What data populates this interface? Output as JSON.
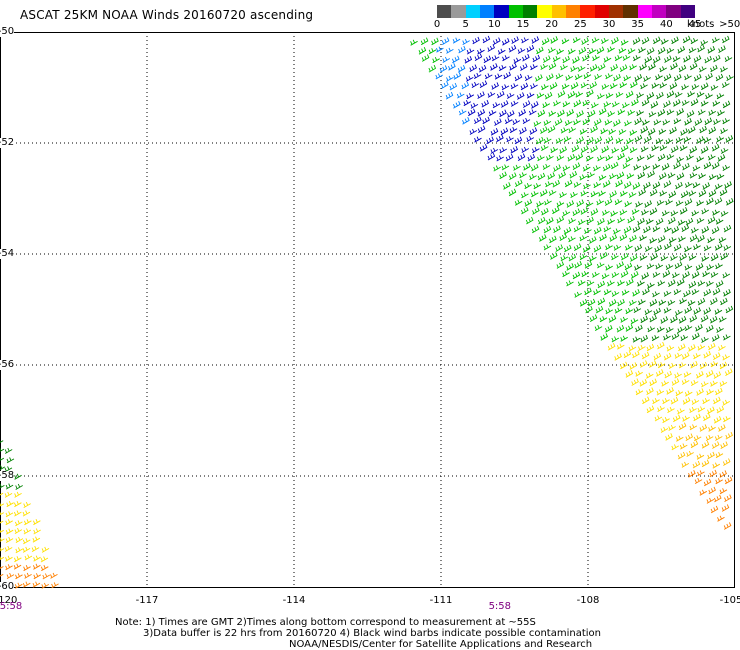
{
  "title": "ASCAT 25KM NOAA Winds 20160720 ascending",
  "legend": {
    "unit": "knots",
    "labels": [
      "0",
      "5",
      "10",
      "15",
      "20",
      "25",
      "30",
      "35",
      "40",
      "45",
      ">50"
    ],
    "colors": [
      "#4d4d4d",
      "#9a9a9a",
      "#00d0ff",
      "#0080ff",
      "#0000c0",
      "#00c000",
      "#008000",
      "#ffff00",
      "#ffc000",
      "#ff8000",
      "#ff2000",
      "#e00000",
      "#a03000",
      "#603000",
      "#ff00ff",
      "#c000c0",
      "#800080",
      "#400080"
    ]
  },
  "map": {
    "lon_range": [
      -120,
      -105
    ],
    "lat_range": [
      -60,
      -50
    ],
    "x_ticks": [
      "-120",
      "-117",
      "-114",
      "-111",
      "-108",
      "-105"
    ],
    "y_ticks": [
      "-50",
      "-52",
      "-54",
      "-56",
      "-58",
      "-60"
    ],
    "grid": true,
    "times": [
      {
        "lon": -120,
        "label": "5:58"
      },
      {
        "lon": -109.8,
        "label": "5:58"
      }
    ]
  },
  "notes": [
    "Note: 1) Times are GMT 2)Times along bottom correspond to measurement at ~55S",
    "3)Data buffer is 22 hrs from 20160720 4) Black wind barbs indicate possible contamination",
    "NOAA/NESDIS/Center for Satellite Applications and Research"
  ]
}
